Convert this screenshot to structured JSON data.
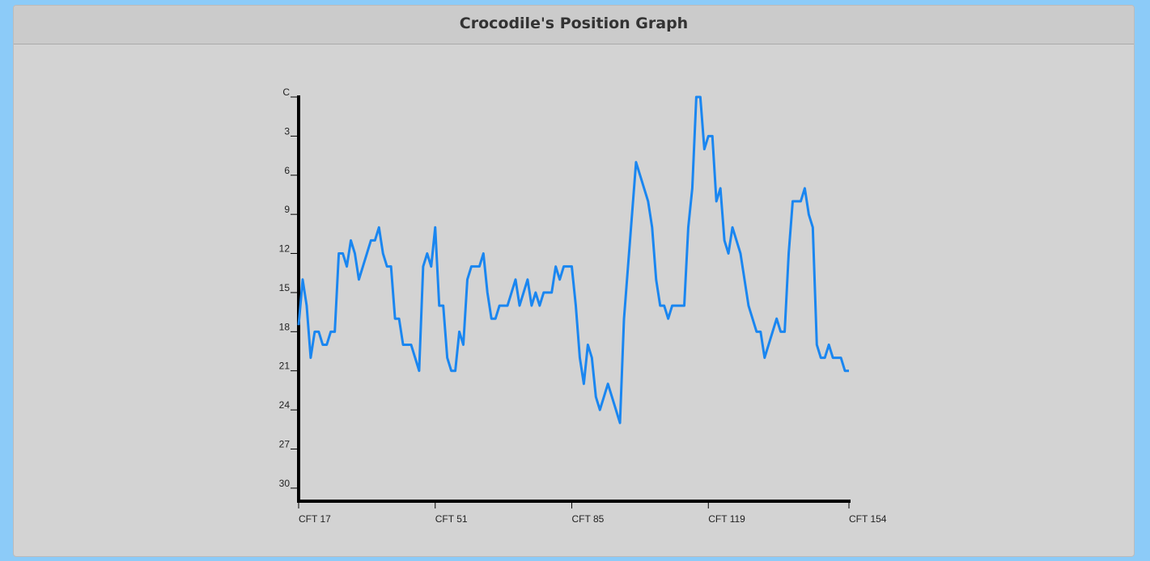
{
  "chart_data": {
    "type": "line",
    "title": "Crocodile's Position Graph",
    "x": [
      17,
      18,
      19,
      20,
      21,
      22,
      23,
      24,
      25,
      26,
      27,
      28,
      29,
      30,
      31,
      32,
      33,
      34,
      35,
      36,
      37,
      38,
      39,
      40,
      41,
      42,
      43,
      44,
      45,
      46,
      47,
      48,
      49,
      50,
      51,
      52,
      53,
      54,
      55,
      56,
      57,
      58,
      59,
      60,
      61,
      62,
      63,
      64,
      65,
      66,
      67,
      68,
      69,
      70,
      71,
      72,
      73,
      74,
      75,
      76,
      77,
      78,
      79,
      80,
      81,
      82,
      83,
      84,
      85,
      86,
      87,
      88,
      89,
      90,
      91,
      92,
      93,
      94,
      95,
      96,
      97,
      98,
      99,
      100,
      101,
      102,
      103,
      104,
      105,
      106,
      107,
      108,
      109,
      110,
      111,
      112,
      113,
      114,
      115,
      116,
      117,
      118,
      119,
      120,
      121,
      122,
      123,
      124,
      125,
      126,
      127,
      128,
      129,
      130,
      131,
      132,
      133,
      134,
      135,
      136,
      137,
      138,
      139,
      140,
      141,
      142,
      143,
      144,
      145,
      146,
      147,
      148,
      149,
      150,
      151,
      152,
      153,
      154
    ],
    "series": [
      {
        "color": "#1a86f0",
        "values": [
          17.5,
          14,
          16,
          20,
          18,
          18,
          19,
          19,
          18,
          18,
          12,
          12,
          13,
          11,
          12,
          14,
          13,
          12,
          11,
          11,
          10,
          12,
          13,
          13,
          17,
          17,
          19,
          19,
          19,
          20,
          21,
          13,
          12,
          13,
          10,
          16,
          16,
          20,
          21,
          21,
          18,
          19,
          14,
          13,
          13,
          13,
          12,
          15,
          17,
          17,
          16,
          16,
          16,
          15,
          14,
          16,
          15,
          14,
          16,
          15,
          16,
          15,
          15,
          15,
          13,
          14,
          13,
          13,
          13,
          16,
          20,
          22,
          19,
          20,
          23,
          24,
          23,
          22,
          23,
          24,
          25,
          17,
          13,
          9,
          5,
          6,
          7,
          8,
          10,
          14,
          16,
          16,
          17,
          16,
          16,
          16,
          16,
          10,
          7,
          0,
          0,
          4,
          3,
          3,
          8,
          7,
          11,
          12,
          10,
          11,
          12,
          14,
          16,
          17,
          18,
          18,
          20,
          19,
          18,
          17,
          18,
          18,
          12,
          8,
          8,
          8,
          7,
          9,
          10,
          19,
          20,
          20,
          19,
          20,
          20,
          20,
          21,
          21
        ]
      }
    ],
    "xlim": [
      17,
      154
    ],
    "xticks": [
      {
        "value": 17,
        "label": "CFT 17"
      },
      {
        "value": 51,
        "label": "CFT 51"
      },
      {
        "value": 85,
        "label": "CFT 85"
      },
      {
        "value": 119,
        "label": "CFT 119"
      },
      {
        "value": 154,
        "label": "CFT 154"
      }
    ],
    "ylim": [
      0,
      31
    ],
    "y_inverted": true,
    "yticks": [
      {
        "value": 0,
        "label": "C"
      },
      3,
      6,
      9,
      12,
      15,
      18,
      21,
      24,
      27,
      30
    ]
  }
}
